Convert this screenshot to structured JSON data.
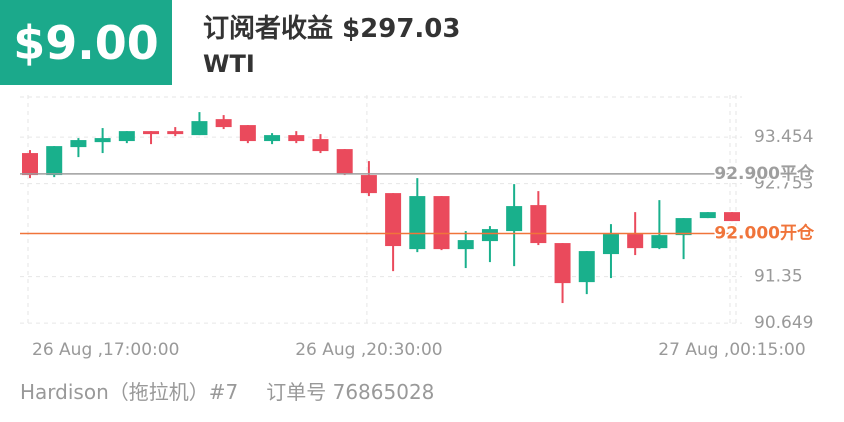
{
  "header": {
    "badge": "$9.00",
    "title": "订阅者收益 $297.03",
    "symbol": "WTI"
  },
  "footer": {
    "trader": "Hardison（拖拉机）#7",
    "order": "订单号 76865028"
  },
  "chart_data": {
    "type": "candlestick",
    "categories": [
      "26 Aug ,17:00:00",
      null,
      null,
      null,
      null,
      null,
      null,
      null,
      null,
      null,
      null,
      null,
      null,
      null,
      "26 Aug ,20:30:00",
      null,
      null,
      null,
      null,
      null,
      null,
      null,
      null,
      null,
      null,
      null,
      null,
      null,
      null,
      "27 Aug ,00:15:00"
    ],
    "open": [
      93.214,
      92.882,
      93.304,
      93.379,
      93.395,
      93.545,
      93.545,
      93.485,
      93.726,
      93.636,
      93.395,
      93.485,
      93.425,
      93.274,
      92.882,
      92.61,
      91.765,
      92.565,
      91.765,
      91.886,
      92.037,
      92.429,
      91.856,
      91.267,
      91.69,
      91.992,
      91.78,
      91.976,
      92.233,
      92.323
    ],
    "high": [
      93.259,
      93.319,
      93.44,
      93.591,
      93.545,
      93.545,
      93.606,
      93.832,
      93.787,
      93.636,
      93.515,
      93.545,
      93.5,
      93.274,
      93.093,
      92.61,
      92.836,
      92.565,
      92.037,
      92.112,
      92.746,
      92.64,
      91.856,
      91.735,
      92.142,
      92.323,
      92.504,
      92.233,
      92.323,
      92.323
    ],
    "low": [
      92.836,
      92.851,
      93.153,
      93.214,
      93.364,
      93.349,
      93.47,
      93.485,
      93.576,
      93.364,
      93.349,
      93.364,
      93.214,
      92.882,
      92.565,
      91.433,
      91.72,
      91.75,
      91.479,
      91.569,
      91.509,
      91.826,
      90.951,
      91.086,
      91.328,
      91.675,
      91.765,
      91.614,
      92.233,
      92.188
    ],
    "close": [
      92.882,
      93.319,
      93.41,
      93.44,
      93.545,
      93.5,
      93.5,
      93.696,
      93.606,
      93.395,
      93.485,
      93.395,
      93.244,
      92.897,
      92.61,
      91.811,
      92.565,
      91.765,
      91.901,
      92.067,
      92.414,
      91.856,
      91.252,
      91.735,
      91.992,
      91.78,
      91.976,
      92.233,
      92.323,
      92.188
    ],
    "up_color": "#19b08c",
    "down_color": "#ea4a5c",
    "ylim": [
      90.62,
      94.09
    ],
    "yticks": [
      90.649,
      91.35,
      92.753,
      93.454
    ],
    "grid": true,
    "lines": [
      {
        "value": 92.9,
        "label": "92.900平仓",
        "color": "#9e9e9e"
      },
      {
        "value": 92.0,
        "label": "92.000开仓",
        "color": "#f0743a"
      }
    ]
  }
}
